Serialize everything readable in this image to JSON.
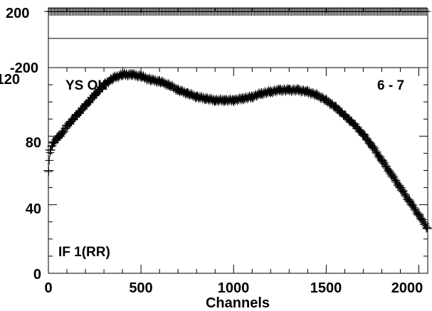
{
  "chart_data": [
    {
      "type": "scatter",
      "panel": "phase",
      "ylim": [
        -200,
        200
      ],
      "xlim": [
        0,
        2048
      ],
      "yticks": [
        200,
        -200
      ],
      "marker": "+",
      "series": [
        {
          "x_start": 1,
          "x_end": 2048,
          "step": 8,
          "values_constant": 180
        }
      ]
    },
    {
      "type": "scatter",
      "panel": "amplitude",
      "xlabel": "Channels",
      "ylabel": "",
      "xlim": [
        0,
        2048
      ],
      "ylim": [
        0,
        120
      ],
      "xticks": [
        0,
        500,
        1000,
        1500,
        2000
      ],
      "yticks": [
        0,
        40,
        80,
        120
      ],
      "marker": "+",
      "annotations": {
        "top_left": "YS  OK",
        "top_right": "6 - 7",
        "bottom_left": "IF 1(RR)"
      },
      "series": [
        {
          "x": [
            1,
            10,
            25,
            50,
            75,
            100,
            150,
            200,
            250,
            300,
            350,
            400,
            450,
            500,
            550,
            600,
            650,
            700,
            750,
            800,
            850,
            900,
            950,
            1000,
            1050,
            1100,
            1150,
            1200,
            1250,
            1300,
            1350,
            1400,
            1450,
            1500,
            1550,
            1600,
            1650,
            1700,
            1750,
            1800,
            1850,
            1900,
            1950,
            2000,
            2048
          ],
          "y": [
            60,
            72,
            76,
            79,
            82,
            86,
            92,
            98,
            104,
            110,
            114,
            116,
            116,
            115,
            113,
            112,
            110,
            107,
            105,
            103,
            102,
            101,
            101,
            101,
            102,
            103,
            105,
            106,
            107,
            107,
            107,
            106,
            104,
            101,
            97,
            92,
            87,
            81,
            74,
            66,
            58,
            50,
            42,
            34,
            26
          ]
        }
      ]
    }
  ]
}
